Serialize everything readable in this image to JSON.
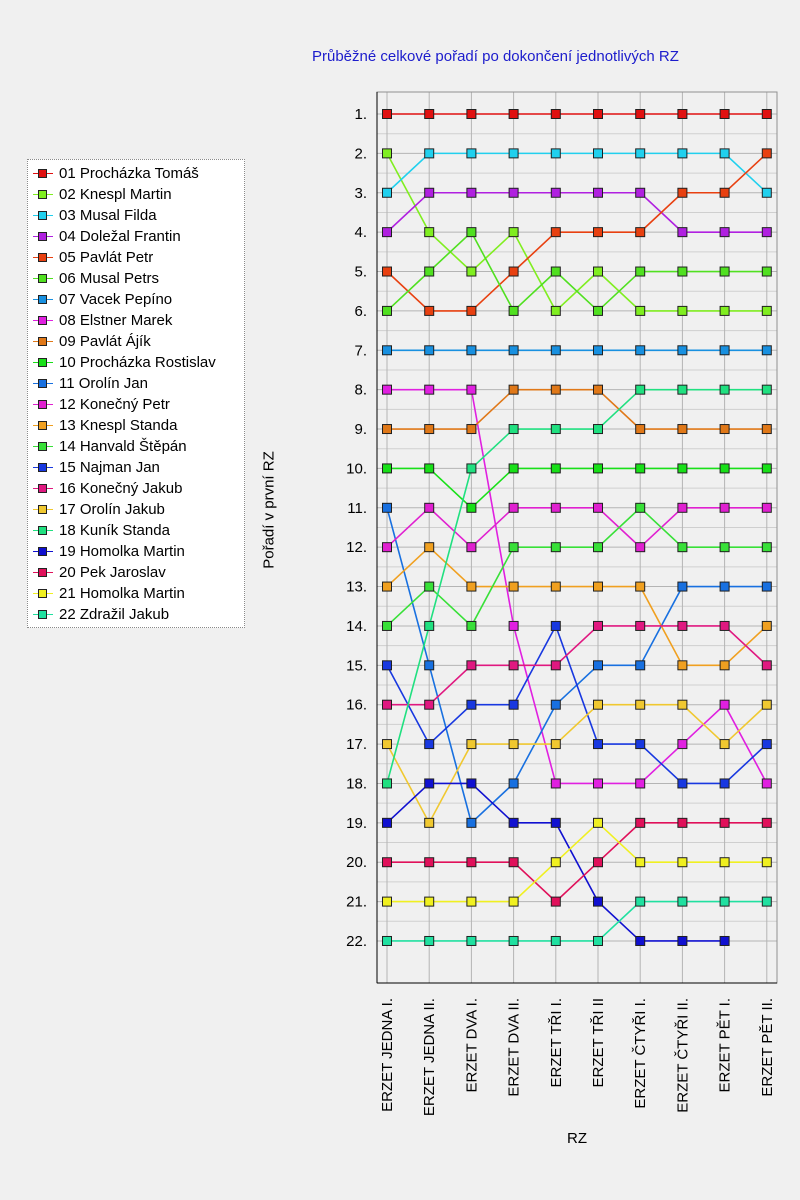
{
  "chart_data": {
    "type": "line",
    "title": "Průběžné celkové pořadí po dokončení jednotlivých RZ",
    "xlabel": "RZ",
    "ylabel": "Pořadí v první RZ",
    "categories": [
      "ERZET JEDNA I.",
      "ERZET JEDNA II.",
      "ERZET DVA I.",
      "ERZET DVA II.",
      "ERZET TŘI I.",
      "ERZET TŘI II",
      "ERZET ČTYŘI I.",
      "ERZET ČTYŘI II.",
      "ERZET PĚT I.",
      "ERZET PĚT II."
    ],
    "y_tick_labels": [
      "1.",
      "2.",
      "3.",
      "4.",
      "5.",
      "6.",
      "7.",
      "8.",
      "9.",
      "10.",
      "11.",
      "12.",
      "13.",
      "14.",
      "15.",
      "16.",
      "17.",
      "18.",
      "19.",
      "20.",
      "21.",
      "22."
    ],
    "ylim": [
      1,
      22
    ],
    "y_inverted": true,
    "grid": true,
    "legend_position": "left",
    "series": [
      {
        "name": "01 Procházka Tomáš",
        "color": "#e01010",
        "values": [
          1,
          1,
          1,
          1,
          1,
          1,
          1,
          1,
          1,
          1
        ]
      },
      {
        "name": "02 Knespl Martin",
        "color": "#80ee20",
        "values": [
          2,
          4,
          5,
          4,
          6,
          5,
          6,
          6,
          6,
          6
        ]
      },
      {
        "name": "03 Musal Filda",
        "color": "#20d0ee",
        "values": [
          3,
          2,
          2,
          2,
          2,
          2,
          2,
          2,
          2,
          3
        ]
      },
      {
        "name": "04 Doležal Frantin",
        "color": "#b020e0",
        "values": [
          4,
          3,
          3,
          3,
          3,
          3,
          3,
          4,
          4,
          4
        ]
      },
      {
        "name": "05 Pavlát Petr",
        "color": "#e84010",
        "values": [
          5,
          6,
          6,
          5,
          4,
          4,
          4,
          3,
          3,
          2
        ]
      },
      {
        "name": "06 Musal Petrs",
        "color": "#50e020",
        "values": [
          6,
          5,
          4,
          6,
          5,
          6,
          5,
          5,
          5,
          5
        ]
      },
      {
        "name": "07 Vacek Pepíno",
        "color": "#1890e0",
        "values": [
          7,
          7,
          7,
          7,
          7,
          7,
          7,
          7,
          7,
          7
        ]
      },
      {
        "name": "08 Elstner Marek",
        "color": "#e020e0",
        "values": [
          8,
          8,
          8,
          14,
          18,
          18,
          18,
          17,
          16,
          18
        ]
      },
      {
        "name": "09 Pavlát Ájík",
        "color": "#e07818",
        "values": [
          9,
          9,
          9,
          8,
          8,
          8,
          9,
          9,
          9,
          9
        ]
      },
      {
        "name": "10 Procházka Rostislav",
        "color": "#18e018",
        "values": [
          10,
          10,
          11,
          10,
          10,
          10,
          10,
          10,
          10,
          10
        ]
      },
      {
        "name": "11 Orolín Jan",
        "color": "#1870e0",
        "values": [
          11,
          15,
          19,
          18,
          16,
          15,
          15,
          13,
          13,
          13
        ]
      },
      {
        "name": "12 Konečný Petr",
        "color": "#e020d0",
        "values": [
          12,
          11,
          12,
          11,
          11,
          11,
          12,
          11,
          11,
          11
        ]
      },
      {
        "name": "13 Knespl Standa",
        "color": "#f0a020",
        "values": [
          13,
          12,
          13,
          13,
          13,
          13,
          13,
          15,
          15,
          14
        ]
      },
      {
        "name": "14 Hanvald Štěpán",
        "color": "#38e038",
        "values": [
          14,
          13,
          14,
          12,
          12,
          12,
          11,
          12,
          12,
          12
        ]
      },
      {
        "name": "15 Najman Jan",
        "color": "#1838e0",
        "values": [
          15,
          17,
          16,
          16,
          14,
          17,
          17,
          18,
          18,
          17
        ]
      },
      {
        "name": "16 Konečný Jakub",
        "color": "#e01880",
        "values": [
          16,
          16,
          15,
          15,
          15,
          14,
          14,
          14,
          14,
          15
        ]
      },
      {
        "name": "17 Orolín Jakub",
        "color": "#f0c830",
        "values": [
          17,
          19,
          17,
          17,
          17,
          16,
          16,
          16,
          17,
          16
        ]
      },
      {
        "name": "18 Kuník Standa",
        "color": "#20e080",
        "values": [
          18,
          14,
          10,
          9,
          9,
          9,
          8,
          8,
          8,
          8
        ]
      },
      {
        "name": "19 Homolka Martin",
        "color": "#1010d0",
        "values": [
          19,
          18,
          18,
          19,
          19,
          21,
          22,
          22,
          22,
          null
        ]
      },
      {
        "name": "20 Pek Jaroslav",
        "color": "#e0105a",
        "values": [
          20,
          20,
          20,
          20,
          21,
          20,
          19,
          19,
          19,
          19
        ]
      },
      {
        "name": "21 Homolka Martin",
        "color": "#f0f020",
        "values": [
          21,
          21,
          21,
          21,
          20,
          19,
          20,
          20,
          20,
          20
        ]
      },
      {
        "name": "22 Zdražil Jakub",
        "color": "#20e0a0",
        "values": [
          22,
          22,
          22,
          22,
          22,
          22,
          21,
          21,
          21,
          21
        ]
      }
    ]
  }
}
